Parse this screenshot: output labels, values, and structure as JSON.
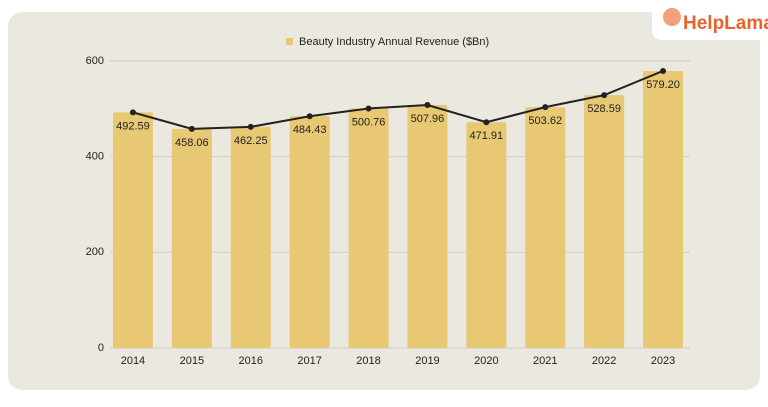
{
  "brand": "HelpLama",
  "chart_data": {
    "type": "bar",
    "categories": [
      "2014",
      "2015",
      "2016",
      "2017",
      "2018",
      "2019",
      "2020",
      "2021",
      "2022",
      "2023"
    ],
    "series": [
      {
        "name": "Beauty Industry Annual Revenue ($Bn)",
        "color": "#e8c873",
        "line_color": "#222222",
        "values": [
          492.59,
          458.06,
          462.25,
          484.43,
          500.76,
          507.96,
          471.91,
          503.62,
          528.59,
          579.2
        ],
        "value_labels": [
          "492.59",
          "458.06",
          "462.25",
          "484.43",
          "500.76",
          "507.96",
          "471.91",
          "503.62",
          "528.59",
          "579.20"
        ]
      }
    ],
    "ylim": [
      0,
      600
    ],
    "yticks": [
      0,
      200,
      400,
      600
    ],
    "grid": true,
    "legend": "top"
  }
}
